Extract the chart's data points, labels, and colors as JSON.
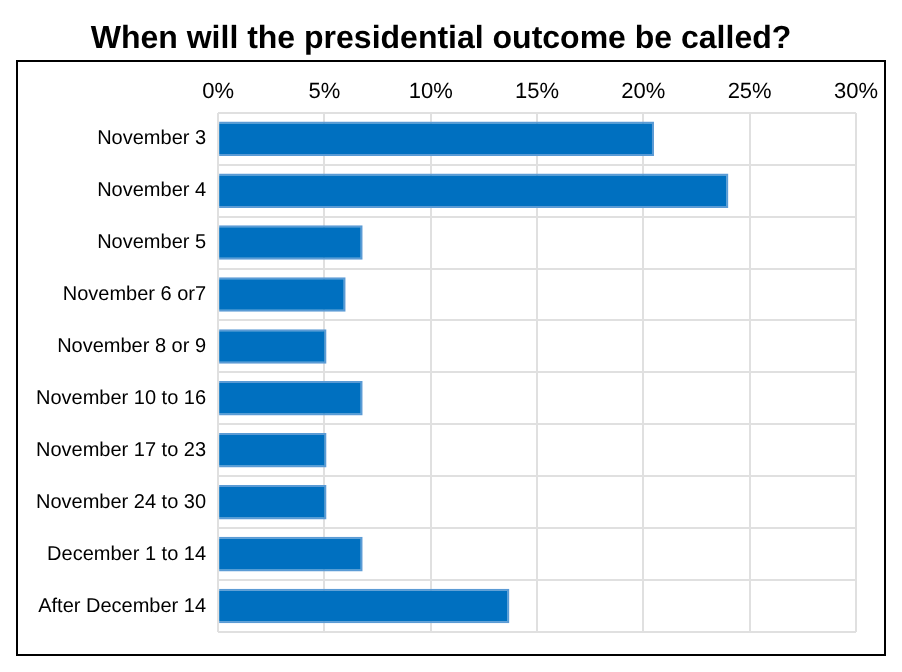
{
  "chart_data": {
    "type": "bar",
    "orientation": "horizontal",
    "title": "When will the presidential outcome be called?",
    "categories": [
      "November 3",
      "November 4",
      "November 5",
      "November 6 or7",
      "November 8 or 9",
      "November 10 to 16",
      "November 17 to 23",
      "November 24 to 30",
      "December 1 to 14",
      "After December 14"
    ],
    "values": [
      20.5,
      24,
      6.8,
      6,
      5.1,
      6.8,
      5.1,
      5.1,
      6.8,
      13.7
    ],
    "color": "#0070c0",
    "xlim": [
      0,
      30
    ],
    "xticks": [
      {
        "value": 0,
        "label": "0%"
      },
      {
        "value": 5,
        "label": "5%"
      },
      {
        "value": 10,
        "label": "10%"
      },
      {
        "value": 15,
        "label": "15%"
      },
      {
        "value": 20,
        "label": "20%"
      },
      {
        "value": 25,
        "label": "25%"
      },
      {
        "value": 30,
        "label": "30%"
      }
    ],
    "grid": true,
    "legend": false
  }
}
